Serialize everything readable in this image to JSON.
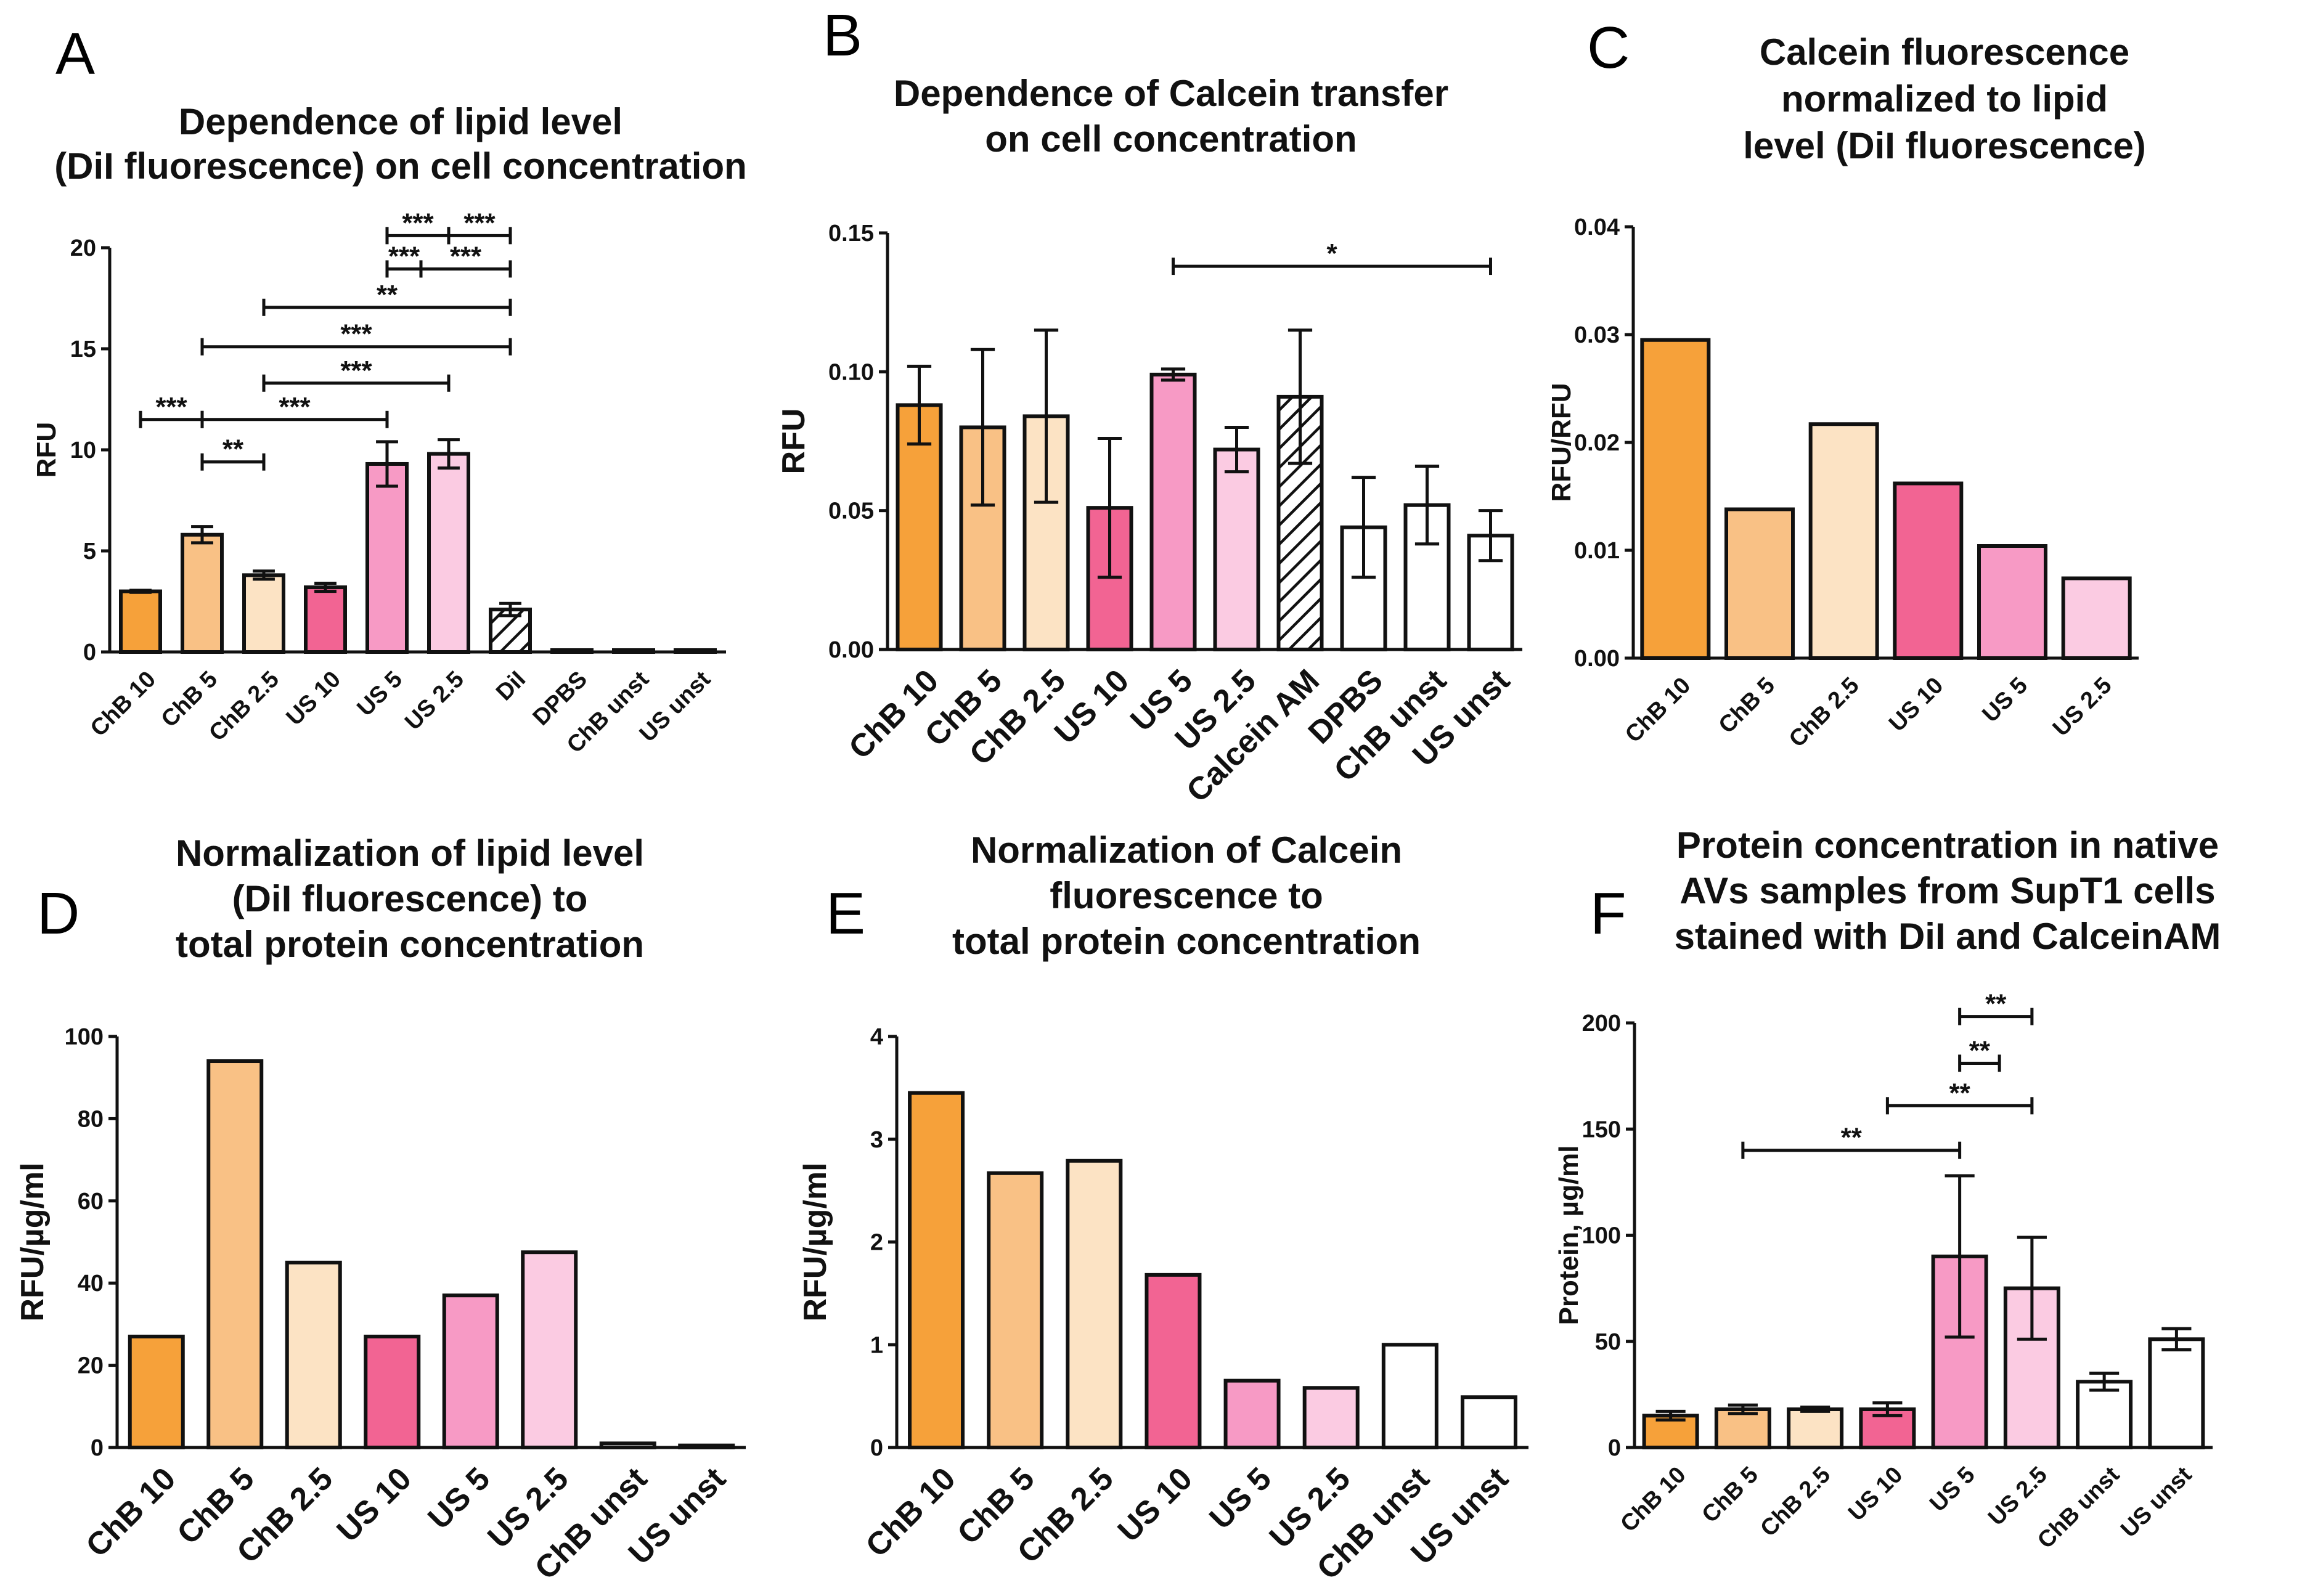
{
  "colors": {
    "ChB 10": "#F6A13A",
    "ChB 5": "#F9C185",
    "ChB 2.5": "#FCE3C4",
    "US 10": "#F26493",
    "US 5": "#F79AC5",
    "US 2.5": "#FBCBE2",
    "white": "#FFFFFF"
  },
  "chart_data": [
    {
      "panel": "A",
      "type": "bar",
      "title": [
        "Dependence of lipid level",
        "(DiI fluorescence) on cell concentration"
      ],
      "ylabel": "RFU",
      "ylim": [
        0,
        20
      ],
      "yticks": [
        "0",
        "5",
        "10",
        "15",
        "20"
      ],
      "categories": [
        "ChB 10",
        "ChB 5",
        "ChB 2.5",
        "US 10",
        "US 5",
        "US 2.5",
        "DiI",
        "DPBS",
        "ChB unst",
        "US unst"
      ],
      "values": [
        3.0,
        5.8,
        3.8,
        3.2,
        9.3,
        9.8,
        2.1,
        0.05,
        0.05,
        0.05
      ],
      "errors": [
        0.05,
        0.4,
        0.2,
        0.2,
        1.1,
        0.7,
        0.3,
        0,
        0,
        0
      ],
      "fills": [
        "ChB 10",
        "ChB 5",
        "ChB 2.5",
        "US 10",
        "US 5",
        "US 2.5",
        "hatch",
        "white",
        "white",
        "white"
      ],
      "significance": [
        {
          "from": 4,
          "to": 5,
          "y": 20.6,
          "label": "***"
        },
        {
          "from": 5,
          "to": 6,
          "y": 20.6,
          "label": "***"
        },
        {
          "from": 4,
          "to": 4.55,
          "y": 18.95,
          "label": "***"
        },
        {
          "from": 4.55,
          "to": 6,
          "y": 18.95,
          "label": "***"
        },
        {
          "from": 2,
          "to": 6,
          "y": 17.05,
          "label": "**"
        },
        {
          "from": 1,
          "to": 6,
          "y": 15.1,
          "label": "***"
        },
        {
          "from": 2,
          "to": 5,
          "y": 13.3,
          "label": "***"
        },
        {
          "from": 0,
          "to": 1,
          "y": 11.5,
          "label": "***"
        },
        {
          "from": 1,
          "to": 4,
          "y": 11.5,
          "label": "***"
        },
        {
          "from": 1,
          "to": 2,
          "y": 9.4,
          "label": "**"
        }
      ]
    },
    {
      "panel": "B",
      "type": "bar",
      "title": [
        "Dependence of Calcein transfer",
        "on cell concentration"
      ],
      "ylabel": "RFU",
      "ylim": [
        0,
        0.15
      ],
      "yticks": [
        "0.00",
        "0.05",
        "0.10",
        "0.15"
      ],
      "categories": [
        "ChB 10",
        "ChB 5",
        "ChB 2.5",
        "US 10",
        "US 5",
        "US 2.5",
        "Calcein AM",
        "DPBS",
        "ChB unst",
        "US unst"
      ],
      "values": [
        0.088,
        0.08,
        0.084,
        0.051,
        0.099,
        0.072,
        0.091,
        0.044,
        0.052,
        0.041
      ],
      "errors": [
        0.014,
        0.028,
        0.031,
        0.025,
        0.002,
        0.008,
        0.024,
        0.018,
        0.014,
        0.009
      ],
      "fills": [
        "ChB 10",
        "ChB 5",
        "ChB 2.5",
        "US 10",
        "US 5",
        "US 2.5",
        "hatch",
        "white",
        "white",
        "white"
      ],
      "significance": [
        {
          "from": 4,
          "to": 9,
          "y": 0.138,
          "label": "*"
        }
      ]
    },
    {
      "panel": "C",
      "type": "bar",
      "title": [
        "Calcein fluorescence",
        "normalized to lipid",
        "level (DiI fluorescence)"
      ],
      "ylabel": "RFU/RFU",
      "ylim": [
        0,
        0.04
      ],
      "yticks": [
        "0.00",
        "0.01",
        "0.02",
        "0.03",
        "0.04"
      ],
      "categories": [
        "ChB 10",
        "ChB 5",
        "ChB 2.5",
        "US 10",
        "US 5",
        "US 2.5"
      ],
      "values": [
        0.0295,
        0.0138,
        0.0217,
        0.0162,
        0.0104,
        0.0074
      ],
      "fills": [
        "ChB 10",
        "ChB 5",
        "ChB 2.5",
        "US 10",
        "US 5",
        "US 2.5"
      ]
    },
    {
      "panel": "D",
      "type": "bar",
      "title": [
        "Normalization of lipid level",
        "(DiI fluorescence) to",
        "total protein concentration"
      ],
      "ylabel": "RFU/µg/ml",
      "ylim": [
        0,
        100
      ],
      "yticks": [
        "0",
        "20",
        "40",
        "60",
        "80",
        "100"
      ],
      "categories": [
        "ChB 10",
        "ChB 5",
        "ChB 2.5",
        "US 10",
        "US 5",
        "US 2.5",
        "ChB unst",
        "US unst"
      ],
      "values": [
        27,
        94,
        45,
        27,
        37,
        47.5,
        1.0,
        0.5
      ],
      "fills": [
        "ChB 10",
        "ChB 5",
        "ChB 2.5",
        "US 10",
        "US 5",
        "US 2.5",
        "white",
        "white"
      ]
    },
    {
      "panel": "E",
      "type": "bar",
      "title": [
        "Normalization of Calcein",
        "fluorescence to",
        "total protein concentration"
      ],
      "ylabel": "RFU/µg/ml",
      "ylim": [
        0,
        4
      ],
      "yticks": [
        "0",
        "1",
        "2",
        "3",
        "4"
      ],
      "categories": [
        "ChB 10",
        "ChB 5",
        "ChB 2.5",
        "US 10",
        "US 5",
        "US 2.5",
        "ChB unst",
        "US unst"
      ],
      "values": [
        3.45,
        2.67,
        2.79,
        1.68,
        0.65,
        0.58,
        1.0,
        0.49
      ],
      "fills": [
        "ChB 10",
        "ChB 5",
        "ChB 2.5",
        "US 10",
        "US 5",
        "US 2.5",
        "white",
        "white"
      ]
    },
    {
      "panel": "F",
      "type": "bar",
      "title": [
        "Protein concentration in native",
        "AVs samples from SupT1 cells",
        "stained with DiI and CalceinAM"
      ],
      "ylabel": "Protein, µg/ml",
      "ylim": [
        0,
        200
      ],
      "yticks": [
        "0",
        "50",
        "100",
        "150",
        "200"
      ],
      "categories": [
        "ChB 10",
        "ChB 5",
        "ChB 2.5",
        "US 10",
        "US 5",
        "US 2.5",
        "ChB unst",
        "US unst"
      ],
      "values": [
        15,
        18,
        18,
        18,
        90,
        75,
        31,
        51
      ],
      "errors": [
        2,
        2,
        1,
        3,
        38,
        24,
        4,
        5
      ],
      "fills": [
        "ChB 10",
        "ChB 5",
        "ChB 2.5",
        "US 10",
        "US 5",
        "US 2.5",
        "white",
        "white"
      ],
      "significance": [
        {
          "from": 4,
          "to": 5,
          "y": 203,
          "label": "**"
        },
        {
          "from": 4,
          "to": 4.55,
          "y": 181,
          "label": "**"
        },
        {
          "from": 3,
          "to": 5,
          "y": 161,
          "label": "**"
        },
        {
          "from": 1,
          "to": 4,
          "y": 140,
          "label": "**"
        }
      ]
    }
  ]
}
